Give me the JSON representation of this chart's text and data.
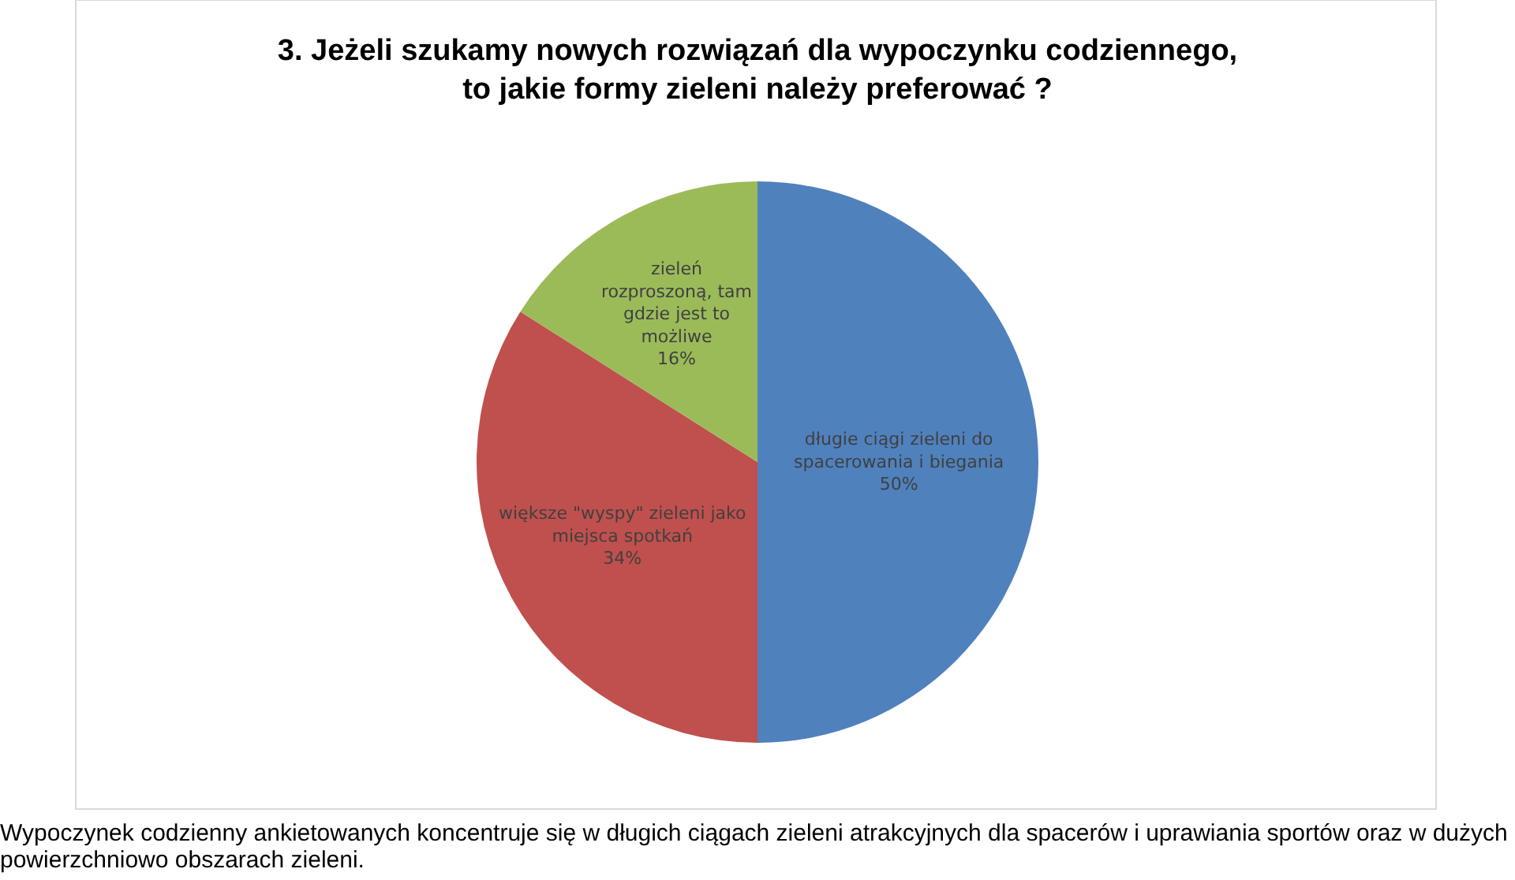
{
  "chart_data": {
    "type": "pie",
    "title": "3. Jeżeli szukamy nowych rozwiązań dla wypoczynku codziennego, to jakie formy zieleni należy preferować ?",
    "categories": [
      "długie ciągi zieleni do spacerowania i biegania",
      "większe \"wyspy\" zieleni jako miejsca spotkań",
      "zieleń rozproszoną, tam gdzie jest to możliwe"
    ],
    "values": [
      50,
      34,
      16
    ],
    "value_labels": [
      "50%",
      "34%",
      "16%"
    ],
    "colors": [
      "#4f81bd",
      "#c0504d",
      "#9bbb59"
    ],
    "legend": false,
    "annotations": [
      "Wypoczynek codzienny ankietowanych koncentruje się w długich ciągach zieleni atrakcyjnych dla spacerów i uprawiania sportów oraz w dużych powierzchniowo obszarach zieleni."
    ]
  }
}
